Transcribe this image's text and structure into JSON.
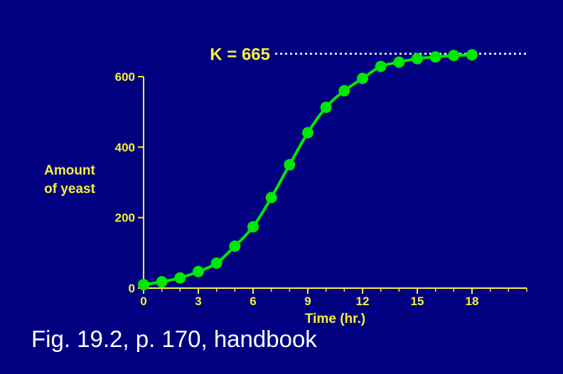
{
  "chart_data": {
    "type": "line",
    "title": "",
    "xlabel": "Time (hr.)",
    "ylabel": [
      "Amount",
      "of yeast"
    ],
    "xlim": [
      0,
      21
    ],
    "ylim": [
      0,
      600
    ],
    "xticks": [
      0,
      3,
      6,
      9,
      12,
      15,
      18
    ],
    "yticks": [
      0,
      200,
      400,
      600
    ],
    "series": [
      {
        "name": "",
        "x": [
          0,
          1,
          2,
          3,
          4,
          5,
          6,
          7,
          8,
          9,
          10,
          11,
          12,
          13,
          14,
          15,
          16,
          17,
          18
        ],
        "values": [
          10,
          18,
          29,
          47,
          71,
          119,
          174,
          257,
          350,
          441,
          513,
          560,
          595,
          629,
          641,
          651,
          656,
          660,
          662
        ],
        "color": "#00e800"
      }
    ],
    "annotations": [
      {
        "label": "K = 665",
        "y": 665,
        "style": "dotted",
        "color": "#ffffff"
      }
    ],
    "axis_color": "#f7f03a",
    "grid": false
  },
  "caption": "Fig. 19.2, p. 170, handbook",
  "colors": {
    "background": "#000080",
    "axis": "#f7f03a",
    "series": "#00e800",
    "text": "#ffffff"
  }
}
